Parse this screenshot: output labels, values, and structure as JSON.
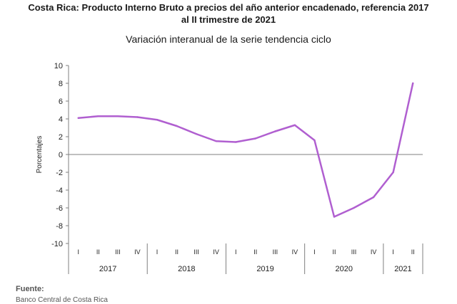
{
  "header": {
    "title_line1": "Costa Rica: Producto Interno Bruto a precios del año anterior encadenado, referencia 2017",
    "title_line2": "al II trimestre de 2021",
    "subtitle": "Variación interanual de la serie tendencia ciclo"
  },
  "footer": {
    "label": "Fuente:",
    "source": "Banco Central de Costa Rica"
  },
  "chart_data": {
    "type": "line",
    "title": "Costa Rica: Producto Interno Bruto a precios del año anterior encadenado, referencia 2017 al II trimestre de 2021",
    "subtitle": "Variación interanual de la serie tendencia ciclo",
    "xlabel": "",
    "ylabel": "Porcentajes",
    "ylim": [
      -10,
      10
    ],
    "yticks": [
      10,
      8,
      6,
      4,
      2,
      0,
      -2,
      -4,
      -6,
      -8,
      -10
    ],
    "grid": false,
    "quarters": [
      "I",
      "II",
      "III",
      "IV",
      "I",
      "II",
      "III",
      "IV",
      "I",
      "II",
      "III",
      "IV",
      "I",
      "II",
      "III",
      "IV",
      "I",
      "II"
    ],
    "years": [
      {
        "label": "2017",
        "quarters": 4
      },
      {
        "label": "2018",
        "quarters": 4
      },
      {
        "label": "2019",
        "quarters": 4
      },
      {
        "label": "2020",
        "quarters": 4
      },
      {
        "label": "2021",
        "quarters": 2
      }
    ],
    "series": [
      {
        "color": "#b05fd0",
        "values": [
          4.1,
          4.3,
          4.3,
          4.2,
          3.9,
          3.2,
          2.3,
          1.5,
          1.4,
          1.8,
          2.6,
          3.3,
          1.6,
          -7.0,
          -6.0,
          -4.8,
          -2.0,
          8.0
        ]
      }
    ]
  }
}
